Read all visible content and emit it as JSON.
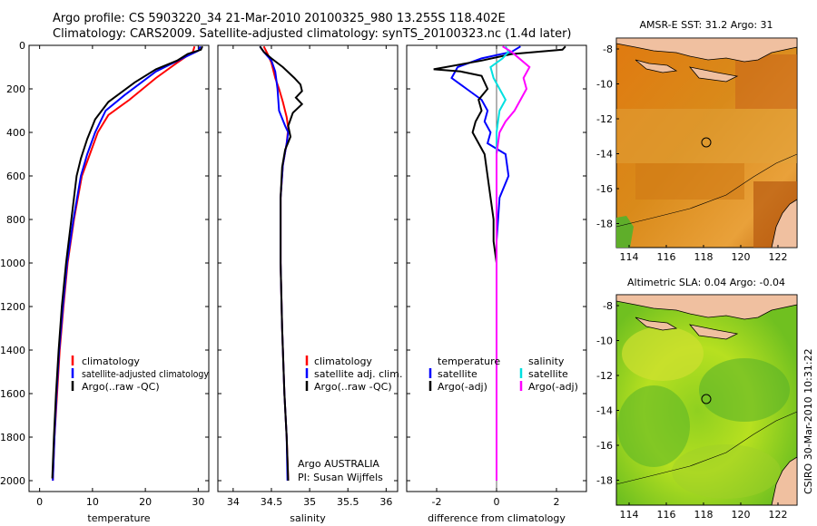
{
  "header": {
    "line1": "Argo profile: CS 5903220_34 21-Mar-2010 20100325_980 13.255S 118.402E",
    "line2": "Climatology: CARS2009. Satellite-adjusted climatology: synTS_20100323.nc (1.4d later)"
  },
  "colors": {
    "climatology": "#ff0000",
    "satellite": "#0000ff",
    "argo": "#000000",
    "sal_sat": "#00e0e0",
    "sal_argo": "#ff00ff"
  },
  "chart_data": [
    {
      "type": "line",
      "xlabel": "temperature",
      "xlim": [
        -2,
        32
      ],
      "ylim": [
        2050,
        0
      ],
      "xticks": [
        0,
        10,
        20,
        30
      ],
      "yticks": [
        0,
        200,
        400,
        600,
        800,
        1000,
        1200,
        1400,
        1600,
        1800,
        2000
      ],
      "legend": [
        "climatology",
        "satellite-adjusted climatology",
        "Argo(..raw -QC)"
      ],
      "series": [
        {
          "name": "climatology",
          "color": "#ff0000",
          "points": [
            [
              29.3,
              5
            ],
            [
              29,
              30
            ],
            [
              26,
              80
            ],
            [
              22,
              150
            ],
            [
              17,
              250
            ],
            [
              13,
              320
            ],
            [
              11,
              400
            ],
            [
              9.5,
              500
            ],
            [
              8,
              600
            ],
            [
              6.5,
              800
            ],
            [
              5.3,
              1000
            ],
            [
              4.5,
              1200
            ],
            [
              3.8,
              1400
            ],
            [
              3.3,
              1600
            ],
            [
              2.8,
              1800
            ],
            [
              2.5,
              2000
            ]
          ]
        },
        {
          "name": "satellite-adjusted climatology",
          "color": "#0000ff",
          "points": [
            [
              30.4,
              5
            ],
            [
              30,
              25
            ],
            [
              27,
              60
            ],
            [
              22,
              120
            ],
            [
              16,
              230
            ],
            [
              12.5,
              300
            ],
            [
              10.5,
              400
            ],
            [
              9,
              500
            ],
            [
              7.8,
              600
            ],
            [
              6.4,
              800
            ],
            [
              5.2,
              1000
            ],
            [
              4.4,
              1200
            ],
            [
              3.7,
              1400
            ],
            [
              3.2,
              1600
            ],
            [
              2.8,
              1800
            ],
            [
              2.5,
              2000
            ]
          ]
        },
        {
          "name": "Argo(..raw -QC)",
          "color": "#000000",
          "points": [
            [
              30.8,
              5
            ],
            [
              30.5,
              20
            ],
            [
              28,
              40
            ],
            [
              26,
              70
            ],
            [
              22,
              110
            ],
            [
              18,
              170
            ],
            [
              13,
              260
            ],
            [
              10.5,
              340
            ],
            [
              9,
              430
            ],
            [
              7.8,
              520
            ],
            [
              7,
              600
            ],
            [
              6,
              800
            ],
            [
              5,
              1000
            ],
            [
              4.2,
              1200
            ],
            [
              3.6,
              1400
            ],
            [
              3.1,
              1600
            ],
            [
              2.7,
              1800
            ],
            [
              2.4,
              1990
            ]
          ]
        }
      ]
    },
    {
      "type": "line",
      "xlabel": "salinity",
      "xlim": [
        33.8,
        36.15
      ],
      "ylim": [
        2050,
        0
      ],
      "xticks": [
        34,
        34.5,
        35,
        35.5,
        36
      ],
      "legend": [
        "climatology",
        "satellite adj. clim.",
        "Argo(..raw -QC)"
      ],
      "annotation": [
        "Argo AUSTRALIA",
        "PI: Susan Wijffels"
      ],
      "series": [
        {
          "name": "climatology",
          "color": "#ff0000",
          "points": [
            [
              34.4,
              5
            ],
            [
              34.45,
              40
            ],
            [
              34.5,
              80
            ],
            [
              34.55,
              150
            ],
            [
              34.6,
              200
            ],
            [
              34.65,
              260
            ],
            [
              34.7,
              330
            ],
            [
              34.72,
              380
            ],
            [
              34.7,
              450
            ],
            [
              34.65,
              550
            ],
            [
              34.62,
              700
            ],
            [
              34.62,
              1000
            ],
            [
              34.64,
              1300
            ],
            [
              34.67,
              1600
            ],
            [
              34.7,
              1800
            ],
            [
              34.72,
              2000
            ]
          ]
        },
        {
          "name": "satellite adj. clim.",
          "color": "#0000ff",
          "points": [
            [
              34.35,
              5
            ],
            [
              34.4,
              30
            ],
            [
              34.5,
              70
            ],
            [
              34.55,
              120
            ],
            [
              34.58,
              200
            ],
            [
              34.6,
              300
            ],
            [
              34.68,
              370
            ],
            [
              34.72,
              400
            ],
            [
              34.7,
              450
            ],
            [
              34.65,
              550
            ],
            [
              34.62,
              700
            ],
            [
              34.62,
              1000
            ],
            [
              34.64,
              1300
            ],
            [
              34.67,
              1600
            ],
            [
              34.7,
              1800
            ],
            [
              34.71,
              2000
            ]
          ]
        },
        {
          "name": "Argo(..raw -QC)",
          "color": "#000000",
          "points": [
            [
              34.35,
              5
            ],
            [
              34.4,
              30
            ],
            [
              34.5,
              60
            ],
            [
              34.65,
              100
            ],
            [
              34.8,
              150
            ],
            [
              34.88,
              180
            ],
            [
              34.9,
              210
            ],
            [
              34.82,
              240
            ],
            [
              34.9,
              270
            ],
            [
              34.78,
              310
            ],
            [
              34.72,
              370
            ],
            [
              34.75,
              420
            ],
            [
              34.68,
              480
            ],
            [
              34.64,
              560
            ],
            [
              34.62,
              700
            ],
            [
              34.62,
              1000
            ],
            [
              34.64,
              1300
            ],
            [
              34.67,
              1600
            ],
            [
              34.7,
              1800
            ],
            [
              34.72,
              2000
            ]
          ]
        }
      ]
    },
    {
      "type": "line",
      "xlabel": "difference from climatology",
      "xlim": [
        -3,
        3
      ],
      "ylim": [
        2050,
        0
      ],
      "xticks": [
        -2,
        0,
        2
      ],
      "legend_cols": [
        {
          "header": "temperature",
          "items": [
            "satellite",
            "Argo(-adj)"
          ]
        },
        {
          "header": "salinity",
          "items": [
            "satellite",
            "Argo(-adj)"
          ]
        }
      ],
      "series": [
        {
          "name": "temperature satellite",
          "color": "#0000ff",
          "points": [
            [
              0.8,
              5
            ],
            [
              0.5,
              30
            ],
            [
              -0.5,
              60
            ],
            [
              -1.3,
              100
            ],
            [
              -1.5,
              150
            ],
            [
              -1,
              200
            ],
            [
              -0.5,
              250
            ],
            [
              -0.3,
              300
            ],
            [
              -0.4,
              350
            ],
            [
              -0.2,
              400
            ],
            [
              -0.3,
              450
            ],
            [
              0.3,
              500
            ],
            [
              0.4,
              600
            ],
            [
              0.1,
              700
            ],
            [
              0,
              900
            ],
            [
              0,
              1200
            ],
            [
              0,
              1600
            ],
            [
              0,
              2000
            ]
          ]
        },
        {
          "name": "temperature Argo(-adj)",
          "color": "#000000",
          "points": [
            [
              2.3,
              5
            ],
            [
              2.2,
              20
            ],
            [
              0.5,
              40
            ],
            [
              -0.5,
              70
            ],
            [
              -2.1,
              110
            ],
            [
              -1.2,
              120
            ],
            [
              -0.5,
              140
            ],
            [
              -0.3,
              200
            ],
            [
              -0.6,
              250
            ],
            [
              -0.5,
              300
            ],
            [
              -0.7,
              350
            ],
            [
              -0.8,
              400
            ],
            [
              -0.6,
              450
            ],
            [
              -0.4,
              500
            ],
            [
              -0.3,
              600
            ],
            [
              -0.2,
              700
            ],
            [
              -0.1,
              800
            ],
            [
              -0.1,
              900
            ],
            [
              0,
              1000
            ],
            [
              0,
              1200
            ],
            [
              0,
              1600
            ],
            [
              0,
              2000
            ]
          ]
        },
        {
          "name": "salinity satellite",
          "color": "#00e0e0",
          "points": [
            [
              0.3,
              5
            ],
            [
              0.4,
              30
            ],
            [
              0.2,
              60
            ],
            [
              -0.2,
              100
            ],
            [
              -0.1,
              150
            ],
            [
              0.1,
              200
            ],
            [
              0.3,
              250
            ],
            [
              0.1,
              300
            ],
            [
              0.05,
              350
            ],
            [
              0,
              400
            ],
            [
              0,
              600
            ],
            [
              0,
              900
            ],
            [
              0,
              1300
            ],
            [
              0,
              1700
            ],
            [
              0,
              2000
            ]
          ]
        },
        {
          "name": "salinity Argo(-adj)",
          "color": "#ff00ff",
          "points": [
            [
              0.2,
              5
            ],
            [
              0.5,
              30
            ],
            [
              1.1,
              100
            ],
            [
              0.9,
              150
            ],
            [
              1.0,
              200
            ],
            [
              0.8,
              250
            ],
            [
              0.6,
              300
            ],
            [
              0.3,
              350
            ],
            [
              0.1,
              400
            ],
            [
              0.05,
              450
            ],
            [
              0,
              500
            ],
            [
              0,
              800
            ],
            [
              0,
              1200
            ],
            [
              0,
              1600
            ],
            [
              0,
              2000
            ]
          ]
        }
      ]
    }
  ],
  "maps": [
    {
      "title": "AMSR-E SST: 31.2 Argo: 31",
      "xticks": [
        "114",
        "116",
        "118",
        "120",
        "122"
      ],
      "yticks": [
        "-8",
        "-10",
        "-12",
        "-14",
        "-16",
        "-18"
      ]
    },
    {
      "title": "Altimetric SLA: 0.04 Argo: -0.04",
      "xticks": [
        "114",
        "116",
        "118",
        "120",
        "122"
      ],
      "yticks": [
        "-8",
        "-10",
        "-12",
        "-14",
        "-16",
        "-18"
      ]
    }
  ],
  "credit": "CSIRO 30-Mar-2010 10:31:22"
}
